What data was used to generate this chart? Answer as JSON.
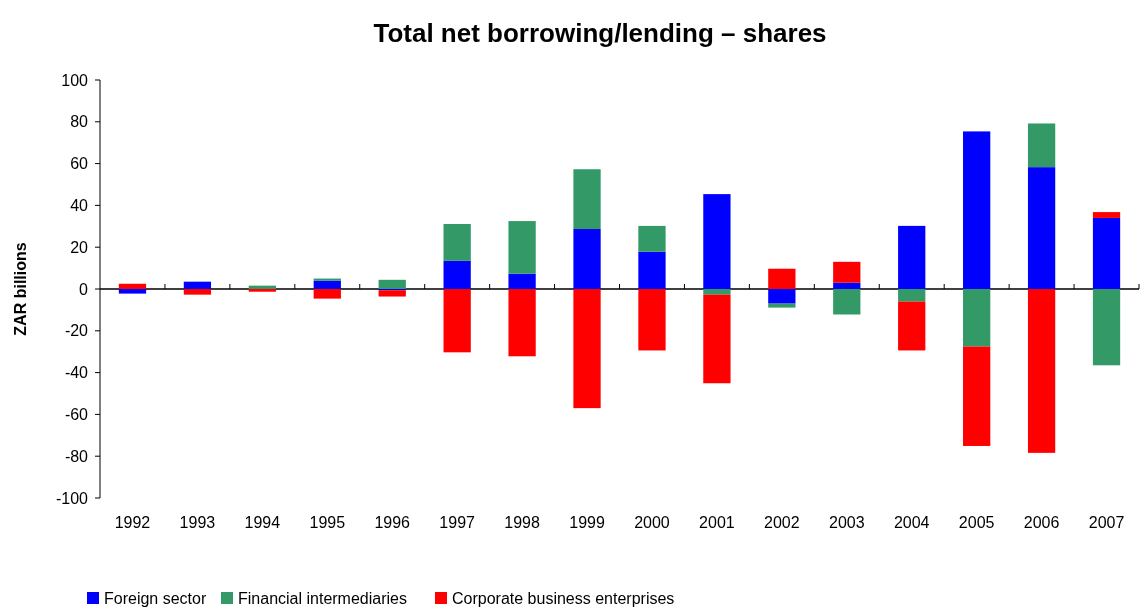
{
  "chart_data": {
    "type": "bar",
    "stacked": true,
    "title": "Total net borrowing/lending – shares",
    "ylabel": "ZAR billions",
    "categories": [
      "1992",
      "1993",
      "1994",
      "1995",
      "1996",
      "1997",
      "1998",
      "1999",
      "2000",
      "2001",
      "2002",
      "2003",
      "2004",
      "2005",
      "2006",
      "2007"
    ],
    "series": [
      {
        "name": "Foreign sector",
        "color": "#0000ff",
        "values": [
          -2.2,
          3.5,
          0,
          4.0,
          -0.6,
          13.5,
          7.3,
          28.7,
          17.8,
          45.4,
          -7.0,
          3.0,
          30.2,
          75.4,
          58.3,
          34.0
        ]
      },
      {
        "name": "Financial intermediaries",
        "color": "#339966",
        "values": [
          0,
          0,
          1.6,
          1.0,
          4.4,
          17.6,
          25.2,
          28.6,
          12.4,
          -2.7,
          -1.9,
          -12.2,
          -6.0,
          -27.5,
          20.9,
          -36.5
        ]
      },
      {
        "name": "Corporate business enterprises",
        "color": "#ff0000",
        "values": [
          2.5,
          -2.7,
          -1.3,
          -4.6,
          -3.0,
          -30.3,
          -32.2,
          -57.0,
          -29.4,
          -42.4,
          9.7,
          10.0,
          -23.4,
          -47.6,
          -78.4,
          2.8
        ]
      }
    ],
    "ylim": [
      -100,
      100
    ],
    "yticks": [
      -100,
      -80,
      -60,
      -40,
      -20,
      0,
      20,
      40,
      60,
      80,
      100
    ],
    "legend": "bottom left"
  }
}
